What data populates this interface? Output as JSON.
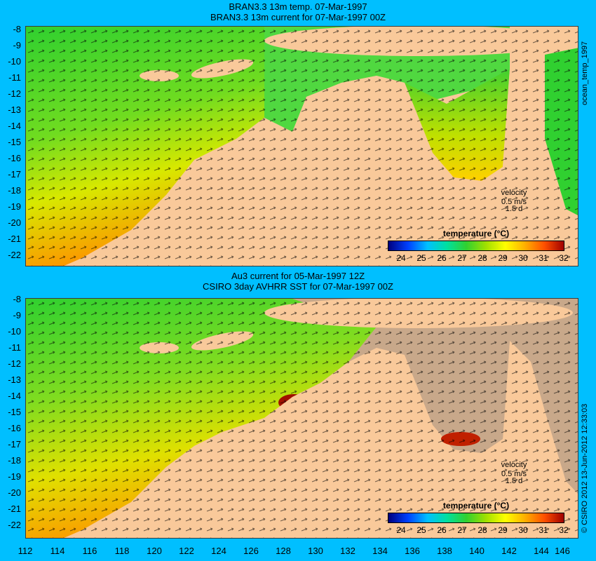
{
  "top_panel": {
    "title_line1": "BRAN3.3 13m temp. 07-Mar-1997",
    "title_line2": "BRAN3.3 13m current for 07-Mar-1997 00Z",
    "velocity_label": "velocity",
    "velocity_speed": "0.5 m/s",
    "velocity_time": "1.5 d",
    "colorbar_title": "temperature (°C)"
  },
  "bottom_panel": {
    "title_line1": "Au3 current for 05-Mar-1997 12Z",
    "title_line2": "CSIRO 3day AVHRR SST for 07-Mar-1997 00Z",
    "velocity_label": "velocity",
    "velocity_speed": "0.5 m/s",
    "velocity_time": "1.5 d",
    "colorbar_title": "temperature (°C)"
  },
  "side_labels": {
    "top": "ocean_temp_1997",
    "bottom": "© CSIRO 2012  13-Jun-2012 12:33:03"
  },
  "y_ticks": [
    "-8",
    "-9",
    "-10",
    "-11",
    "-12",
    "-13",
    "-14",
    "-15",
    "-16",
    "-17",
    "-18",
    "-19",
    "-20",
    "-21",
    "-22"
  ],
  "x_ticks": [
    "112",
    "114",
    "116",
    "118",
    "120",
    "122",
    "124",
    "126",
    "128",
    "130",
    "132",
    "134",
    "136",
    "138",
    "140",
    "142",
    "144",
    "146"
  ],
  "colorbar_ticks": [
    "24",
    "25",
    "26",
    "27",
    "28",
    "29",
    "30",
    "31",
    "32"
  ],
  "colors": {
    "background": "#00bfff",
    "land": "#f9c99a",
    "no_data": "#c8a88a",
    "colorbar": [
      "#00007f",
      "#0040ff",
      "#00c0ff",
      "#00e0a0",
      "#30d030",
      "#a0e000",
      "#ffff00",
      "#ffb000",
      "#ff5000",
      "#a00000"
    ]
  }
}
